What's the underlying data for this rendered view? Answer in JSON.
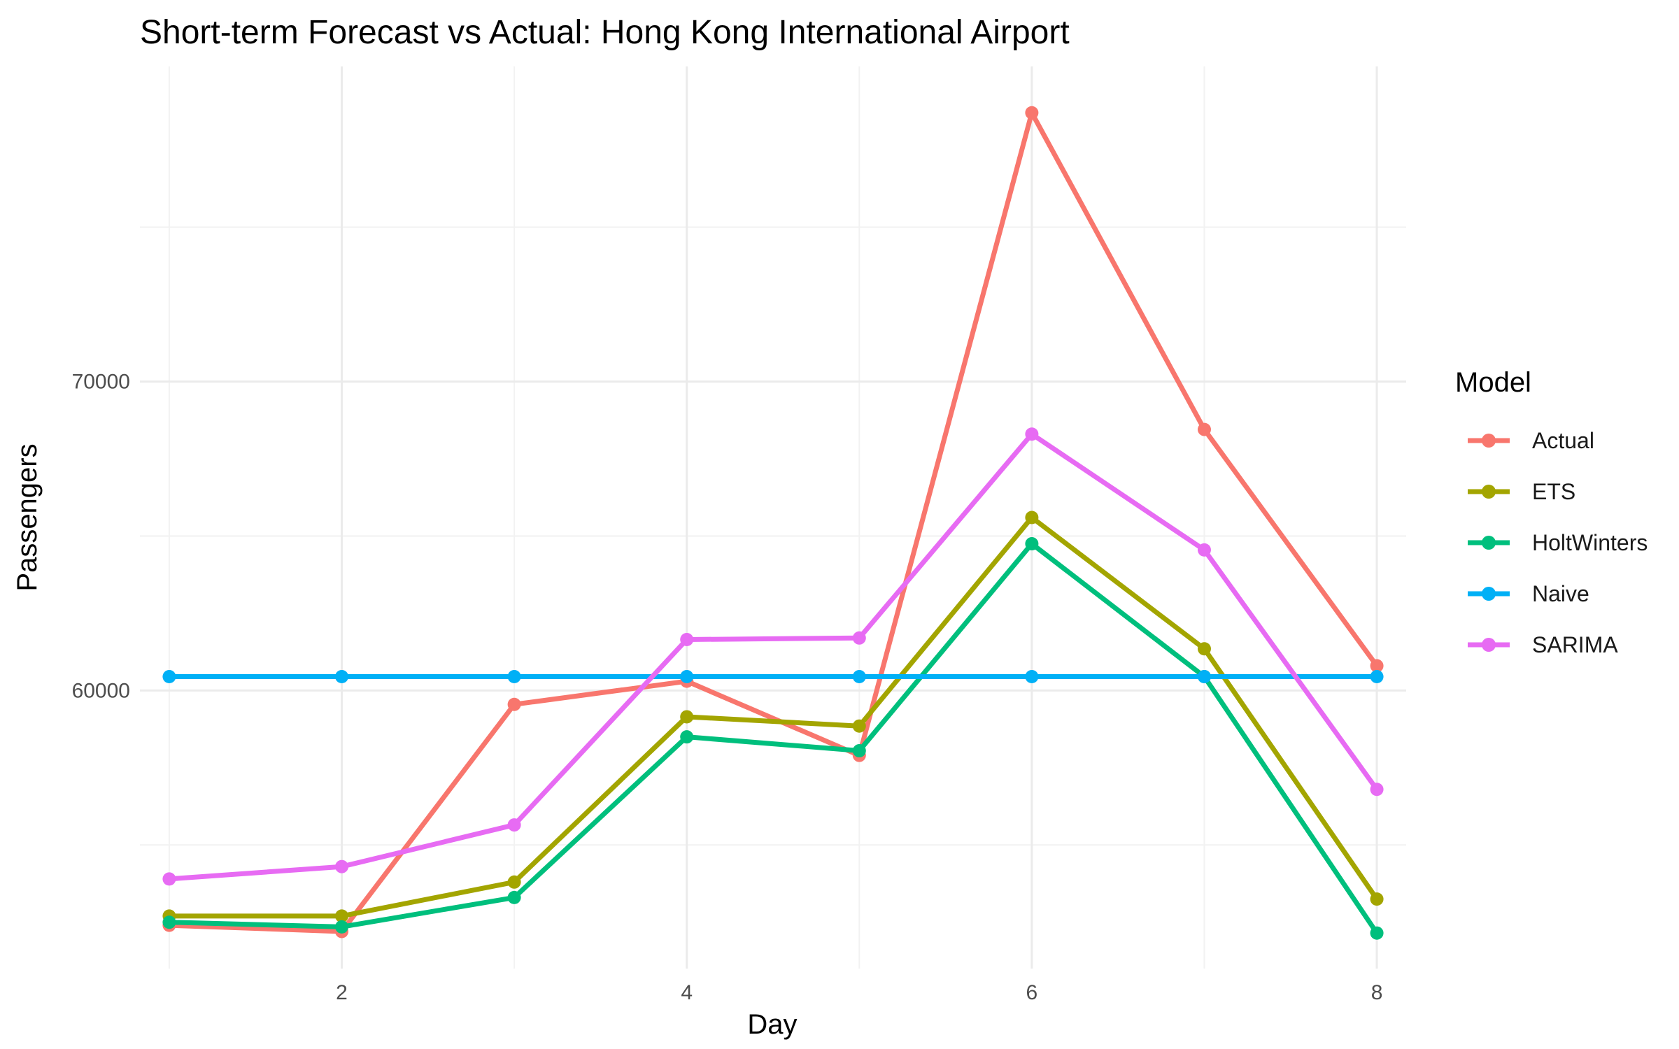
{
  "chart_data": {
    "type": "line",
    "title": "Short-term Forecast vs Actual: Hong Kong International Airport",
    "xlabel": "Day",
    "ylabel": "Passengers",
    "x": [
      1,
      2,
      3,
      4,
      5,
      6,
      7,
      8
    ],
    "xlim": [
      0.83,
      8.17
    ],
    "ylim": [
      51000,
      80200
    ],
    "x_ticks": [
      2,
      4,
      6,
      8
    ],
    "y_ticks": [
      60000,
      70000
    ],
    "grid": true,
    "legend": {
      "title": "Model",
      "placement": "right"
    },
    "series": [
      {
        "name": "Actual",
        "color": "#F8766D",
        "values": [
          52400,
          52200,
          59550,
          60300,
          57900,
          78700,
          68450,
          60800
        ]
      },
      {
        "name": "ETS",
        "color": "#A3A500",
        "values": [
          52700,
          52700,
          53800,
          59150,
          58850,
          65600,
          61350,
          53250
        ]
      },
      {
        "name": "HoltWinters",
        "color": "#00BF7D",
        "values": [
          52500,
          52350,
          53300,
          58500,
          58050,
          64750,
          60450,
          52150
        ]
      },
      {
        "name": "Naive",
        "color": "#00B0F6",
        "values": [
          60450,
          60450,
          60450,
          60450,
          60450,
          60450,
          60450,
          60450
        ]
      },
      {
        "name": "SARIMA",
        "color": "#E76BF3",
        "values": [
          53900,
          54300,
          55650,
          61650,
          61700,
          68300,
          64550,
          56800
        ]
      }
    ]
  }
}
